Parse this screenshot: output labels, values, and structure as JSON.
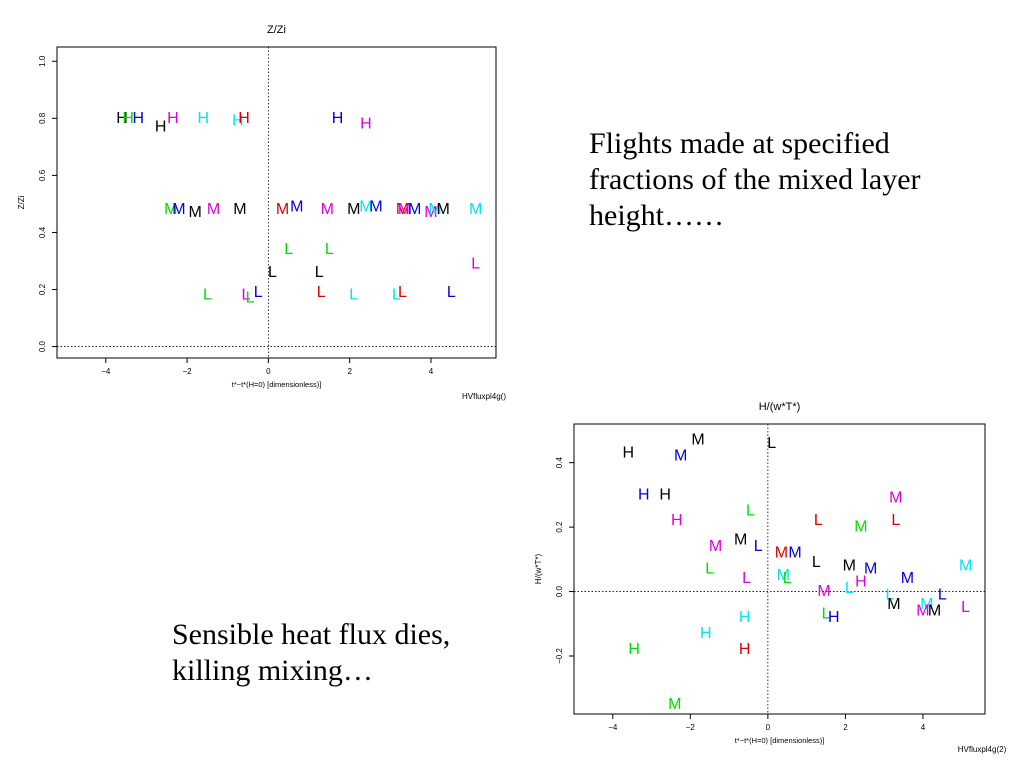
{
  "slide": {
    "text_top_right": [
      "Flights made at specified",
      "fractions of the mixed layer",
      "height……"
    ],
    "text_bottom_left": [
      "Sensible heat flux dies,",
      "killing mixing…"
    ]
  },
  "colors": {
    "black": "#000000",
    "green": "#00dd00",
    "blue": "#0000dd",
    "magenta": "#dd00dd",
    "cyan": "#00e5ee",
    "red": "#dd0000",
    "axis": "#000000"
  },
  "chart_data": [
    {
      "type": "scatter",
      "title": "Z/Zi",
      "xlabel": "t*−t*(H=0) [dimensionless)]",
      "ylabel": "Z/Zi",
      "caption": "HVfluxpl4g()",
      "xlim": [
        -5.2,
        5.6
      ],
      "ylim": [
        -0.04,
        1.05
      ],
      "xticks": [
        -4,
        -2,
        0,
        2,
        4
      ],
      "yticks": [
        0.0,
        0.2,
        0.4,
        0.6,
        0.8,
        1.0
      ],
      "reference_lines": {
        "x": 0,
        "y": 0
      },
      "points": [
        {
          "label": "H",
          "color": "black",
          "x": -3.6,
          "y": 0.8
        },
        {
          "label": "H",
          "color": "green",
          "x": -3.45,
          "y": 0.8
        },
        {
          "label": "H",
          "color": "blue",
          "x": -3.2,
          "y": 0.8
        },
        {
          "label": "H",
          "color": "black",
          "x": -2.65,
          "y": 0.77
        },
        {
          "label": "H",
          "color": "magenta",
          "x": -2.35,
          "y": 0.8
        },
        {
          "label": "H",
          "color": "cyan",
          "x": -1.6,
          "y": 0.8
        },
        {
          "label": "H",
          "color": "cyan",
          "x": -0.75,
          "y": 0.79
        },
        {
          "label": "H",
          "color": "red",
          "x": -0.6,
          "y": 0.8
        },
        {
          "label": "H",
          "color": "blue",
          "x": 1.7,
          "y": 0.8
        },
        {
          "label": "H",
          "color": "magenta",
          "x": 2.4,
          "y": 0.78
        },
        {
          "label": "M",
          "color": "green",
          "x": -2.4,
          "y": 0.48
        },
        {
          "label": "M",
          "color": "blue",
          "x": -2.2,
          "y": 0.48
        },
        {
          "label": "M",
          "color": "black",
          "x": -1.8,
          "y": 0.47
        },
        {
          "label": "M",
          "color": "magenta",
          "x": -1.35,
          "y": 0.48
        },
        {
          "label": "M",
          "color": "black",
          "x": -0.7,
          "y": 0.48
        },
        {
          "label": "M",
          "color": "red",
          "x": 0.35,
          "y": 0.48
        },
        {
          "label": "M",
          "color": "blue",
          "x": 0.7,
          "y": 0.49
        },
        {
          "label": "M",
          "color": "magenta",
          "x": 1.45,
          "y": 0.48
        },
        {
          "label": "M",
          "color": "black",
          "x": 2.1,
          "y": 0.48
        },
        {
          "label": "M",
          "color": "cyan",
          "x": 2.4,
          "y": 0.49
        },
        {
          "label": "M",
          "color": "blue",
          "x": 2.65,
          "y": 0.49
        },
        {
          "label": "M",
          "color": "red",
          "x": 3.3,
          "y": 0.48
        },
        {
          "label": "M",
          "color": "magenta",
          "x": 3.35,
          "y": 0.48
        },
        {
          "label": "M",
          "color": "blue",
          "x": 3.6,
          "y": 0.48
        },
        {
          "label": "M",
          "color": "magenta",
          "x": 4.0,
          "y": 0.47
        },
        {
          "label": "M",
          "color": "cyan",
          "x": 4.1,
          "y": 0.48
        },
        {
          "label": "M",
          "color": "black",
          "x": 4.3,
          "y": 0.48
        },
        {
          "label": "M",
          "color": "cyan",
          "x": 5.1,
          "y": 0.48
        },
        {
          "label": "L",
          "color": "green",
          "x": 0.5,
          "y": 0.34
        },
        {
          "label": "L",
          "color": "green",
          "x": 1.5,
          "y": 0.34
        },
        {
          "label": "L",
          "color": "black",
          "x": 0.1,
          "y": 0.26
        },
        {
          "label": "L",
          "color": "black",
          "x": 1.25,
          "y": 0.26
        },
        {
          "label": "L",
          "color": "magenta",
          "x": 5.1,
          "y": 0.29
        },
        {
          "label": "L",
          "color": "green",
          "x": -1.5,
          "y": 0.18
        },
        {
          "label": "L",
          "color": "magenta",
          "x": -0.55,
          "y": 0.18
        },
        {
          "label": "L",
          "color": "green",
          "x": -0.45,
          "y": 0.17
        },
        {
          "label": "L",
          "color": "blue",
          "x": -0.25,
          "y": 0.19
        },
        {
          "label": "L",
          "color": "red",
          "x": 1.3,
          "y": 0.19
        },
        {
          "label": "L",
          "color": "cyan",
          "x": 2.1,
          "y": 0.18
        },
        {
          "label": "L",
          "color": "cyan",
          "x": 3.15,
          "y": 0.18
        },
        {
          "label": "L",
          "color": "red",
          "x": 3.3,
          "y": 0.19
        },
        {
          "label": "L",
          "color": "blue",
          "x": 4.5,
          "y": 0.19
        }
      ]
    },
    {
      "type": "scatter",
      "title": "H/(w*T*)",
      "xlabel": "t*−t*(H=0) [dimensionless)]",
      "ylabel": "H/(w*T*)",
      "caption": "HVfluxpl4g(2)",
      "xlim": [
        -5.0,
        5.6
      ],
      "ylim": [
        -0.38,
        0.52
      ],
      "xticks": [
        -4,
        -2,
        0,
        2,
        4
      ],
      "yticks": [
        -0.2,
        0.0,
        0.2,
        0.4
      ],
      "reference_lines": {
        "x": 0,
        "y": 0
      },
      "points": [
        {
          "label": "M",
          "color": "black",
          "x": -1.8,
          "y": 0.47
        },
        {
          "label": "L",
          "color": "black",
          "x": 0.1,
          "y": 0.46
        },
        {
          "label": "H",
          "color": "black",
          "x": -3.6,
          "y": 0.43
        },
        {
          "label": "M",
          "color": "blue",
          "x": -2.25,
          "y": 0.42
        },
        {
          "label": "H",
          "color": "blue",
          "x": -3.2,
          "y": 0.3
        },
        {
          "label": "H",
          "color": "black",
          "x": -2.65,
          "y": 0.3
        },
        {
          "label": "M",
          "color": "magenta",
          "x": 3.3,
          "y": 0.29
        },
        {
          "label": "L",
          "color": "green",
          "x": -0.45,
          "y": 0.25
        },
        {
          "label": "H",
          "color": "magenta",
          "x": -2.35,
          "y": 0.22
        },
        {
          "label": "L",
          "color": "red",
          "x": 1.3,
          "y": 0.22
        },
        {
          "label": "L",
          "color": "red",
          "x": 3.3,
          "y": 0.22
        },
        {
          "label": "M",
          "color": "green",
          "x": 2.4,
          "y": 0.2
        },
        {
          "label": "M",
          "color": "black",
          "x": -0.7,
          "y": 0.16
        },
        {
          "label": "L",
          "color": "blue",
          "x": -0.25,
          "y": 0.14
        },
        {
          "label": "M",
          "color": "magenta",
          "x": -1.35,
          "y": 0.14
        },
        {
          "label": "M",
          "color": "red",
          "x": 0.35,
          "y": 0.12
        },
        {
          "label": "M",
          "color": "blue",
          "x": 0.7,
          "y": 0.12
        },
        {
          "label": "L",
          "color": "black",
          "x": 1.25,
          "y": 0.09
        },
        {
          "label": "M",
          "color": "black",
          "x": 2.1,
          "y": 0.08
        },
        {
          "label": "M",
          "color": "blue",
          "x": 2.65,
          "y": 0.07
        },
        {
          "label": "L",
          "color": "green",
          "x": -1.5,
          "y": 0.07
        },
        {
          "label": "M",
          "color": "cyan",
          "x": 5.1,
          "y": 0.08
        },
        {
          "label": "M",
          "color": "cyan",
          "x": 0.4,
          "y": 0.05
        },
        {
          "label": "L",
          "color": "green",
          "x": 0.5,
          "y": 0.04
        },
        {
          "label": "L",
          "color": "magenta",
          "x": -0.55,
          "y": 0.04
        },
        {
          "label": "M",
          "color": "blue",
          "x": 3.6,
          "y": 0.04
        },
        {
          "label": "H",
          "color": "magenta",
          "x": 2.4,
          "y": 0.03
        },
        {
          "label": "L",
          "color": "cyan",
          "x": 2.1,
          "y": 0.01
        },
        {
          "label": "M",
          "color": "magenta",
          "x": 1.45,
          "y": 0.0
        },
        {
          "label": "L",
          "color": "cyan",
          "x": 3.15,
          "y": -0.01
        },
        {
          "label": "L",
          "color": "blue",
          "x": 4.5,
          "y": -0.01
        },
        {
          "label": "M",
          "color": "black",
          "x": 3.25,
          "y": -0.04
        },
        {
          "label": "M",
          "color": "cyan",
          "x": 4.1,
          "y": -0.04
        },
        {
          "label": "L",
          "color": "magenta",
          "x": 5.1,
          "y": -0.05
        },
        {
          "label": "M",
          "color": "magenta",
          "x": 4.0,
          "y": -0.06
        },
        {
          "label": "M",
          "color": "black",
          "x": 4.3,
          "y": -0.06
        },
        {
          "label": "L",
          "color": "green",
          "x": 1.5,
          "y": -0.07
        },
        {
          "label": "H",
          "color": "blue",
          "x": 1.7,
          "y": -0.08
        },
        {
          "label": "H",
          "color": "cyan",
          "x": -0.6,
          "y": -0.08
        },
        {
          "label": "H",
          "color": "cyan",
          "x": -1.6,
          "y": -0.13
        },
        {
          "label": "H",
          "color": "green",
          "x": -3.45,
          "y": -0.18
        },
        {
          "label": "H",
          "color": "red",
          "x": -0.6,
          "y": -0.18
        },
        {
          "label": "M",
          "color": "green",
          "x": -2.4,
          "y": -0.35
        }
      ]
    }
  ]
}
